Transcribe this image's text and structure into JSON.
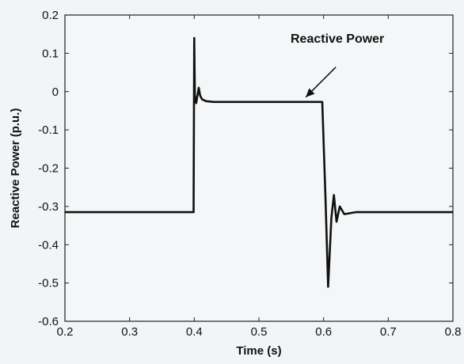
{
  "chart_data": {
    "type": "line",
    "title": "",
    "xlabel": "Time (s)",
    "ylabel": "Reactive Power (p.u.)",
    "xlim": [
      0.2,
      0.8
    ],
    "ylim": [
      -0.6,
      0.2
    ],
    "xticks": [
      0.2,
      0.3,
      0.4,
      0.5,
      0.6,
      0.7,
      0.8
    ],
    "yticks": [
      0.2,
      0.1,
      0,
      -0.1,
      -0.2,
      -0.3,
      -0.4,
      -0.5,
      -0.6
    ],
    "xtick_labels": [
      "0.2",
      "0.3",
      "0.4",
      "0.5",
      "0.6",
      "0.7",
      "0.8"
    ],
    "ytick_labels": [
      "0.2",
      "0.1",
      "0",
      "-0.1",
      "-0.2",
      "-0.3",
      "-0.4",
      "-0.5",
      "-0.6"
    ],
    "grid": false,
    "line_color": "#111111",
    "series": [
      {
        "name": "Reactive Power",
        "points": [
          [
            0.2,
            -0.315
          ],
          [
            0.25,
            -0.315
          ],
          [
            0.3,
            -0.315
          ],
          [
            0.35,
            -0.315
          ],
          [
            0.399,
            -0.315
          ],
          [
            0.4,
            0.14
          ],
          [
            0.401,
            -0.01
          ],
          [
            0.403,
            -0.03
          ],
          [
            0.405,
            -0.01
          ],
          [
            0.407,
            0.01
          ],
          [
            0.409,
            -0.01
          ],
          [
            0.412,
            -0.02
          ],
          [
            0.418,
            -0.025
          ],
          [
            0.43,
            -0.027
          ],
          [
            0.5,
            -0.027
          ],
          [
            0.55,
            -0.027
          ],
          [
            0.598,
            -0.027
          ],
          [
            0.603,
            -0.28
          ],
          [
            0.607,
            -0.51
          ],
          [
            0.612,
            -0.33
          ],
          [
            0.616,
            -0.27
          ],
          [
            0.62,
            -0.34
          ],
          [
            0.625,
            -0.3
          ],
          [
            0.632,
            -0.32
          ],
          [
            0.65,
            -0.315
          ],
          [
            0.7,
            -0.315
          ],
          [
            0.75,
            -0.315
          ],
          [
            0.8,
            -0.315
          ]
        ]
      }
    ],
    "annotations": [
      {
        "text": "Reactive Power",
        "points_to": [
          0.57,
          -0.027
        ]
      }
    ]
  }
}
